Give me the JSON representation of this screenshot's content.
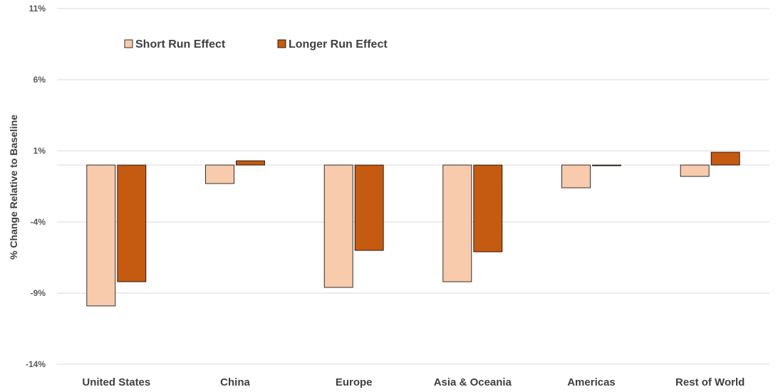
{
  "chart_data": {
    "type": "bar",
    "ylabel": "% Change Relative to Baseline",
    "xlabel": "",
    "ylim": [
      -14,
      11
    ],
    "yticks": [
      11,
      6,
      1,
      -4,
      -9,
      -14
    ],
    "ytick_labels": [
      "11%",
      "6%",
      "1%",
      "-4%",
      "-9%",
      "-14%"
    ],
    "categories": [
      "United States",
      "China",
      "Europe",
      "Asia & Oceania",
      "Americas",
      "Rest of World"
    ],
    "series": [
      {
        "name": "Short Run Effect",
        "color": "#F8CBAD",
        "values": [
          -9.9,
          -1.3,
          -8.6,
          -8.2,
          -1.6,
          -0.8
        ]
      },
      {
        "name": "Longer Run Effect",
        "color": "#C55A11",
        "values": [
          -8.2,
          0.3,
          -6.0,
          -6.1,
          -0.05,
          0.9
        ]
      }
    ],
    "grid": true,
    "legend_position": "top-left"
  }
}
